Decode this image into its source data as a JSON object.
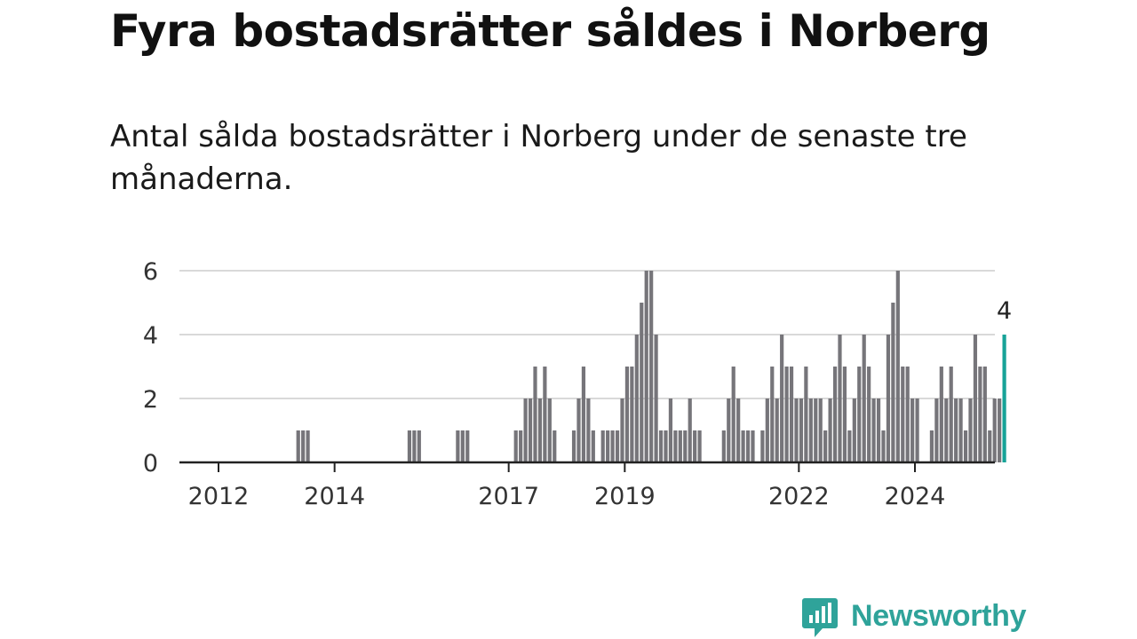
{
  "title": "Fyra bostadsrätter såldes i Norberg",
  "subtitle": "Antal sålda bostadsrätter i Norberg under de senaste tre månaderna.",
  "brand": {
    "name": "Newsworthy",
    "color": "#2fa39a"
  },
  "chart_data": {
    "type": "bar",
    "ylim": [
      0,
      6
    ],
    "yticks": [
      0,
      2,
      4,
      6
    ],
    "x_ticks": [
      {
        "label": "2012",
        "month": 0
      },
      {
        "label": "2014",
        "month": 24
      },
      {
        "label": "2017",
        "month": 60
      },
      {
        "label": "2019",
        "month": 84
      },
      {
        "label": "2022",
        "month": 120
      },
      {
        "label": "2024",
        "month": 144
      }
    ],
    "x_month_range": [
      -8,
      160
    ],
    "grid": true,
    "bar_color": "#76757a",
    "highlight_color": "#17a398",
    "start_period": "2012-01",
    "values": [
      0,
      0,
      0,
      0,
      0,
      0,
      0,
      0,
      0,
      0,
      0,
      0,
      0,
      0,
      0,
      0,
      1,
      1,
      1,
      0,
      0,
      0,
      0,
      0,
      0,
      0,
      0,
      0,
      0,
      0,
      0,
      0,
      0,
      0,
      0,
      0,
      0,
      0,
      0,
      1,
      1,
      1,
      0,
      0,
      0,
      0,
      0,
      0,
      0,
      1,
      1,
      1,
      0,
      0,
      0,
      0,
      0,
      0,
      0,
      0,
      0,
      1,
      1,
      2,
      2,
      3,
      2,
      3,
      2,
      1,
      0,
      0,
      0,
      1,
      2,
      3,
      2,
      1,
      0,
      1,
      1,
      1,
      1,
      2,
      3,
      3,
      4,
      5,
      6,
      6,
      4,
      1,
      1,
      2,
      1,
      1,
      1,
      2,
      1,
      1,
      0,
      0,
      0,
      0,
      1,
      2,
      3,
      2,
      1,
      1,
      1,
      0,
      1,
      2,
      3,
      2,
      4,
      3,
      3,
      2,
      2,
      3,
      2,
      2,
      2,
      1,
      2,
      3,
      4,
      3,
      1,
      2,
      3,
      4,
      3,
      2,
      2,
      1,
      4,
      5,
      6,
      3,
      3,
      2,
      2,
      0,
      0,
      1,
      2,
      3,
      2,
      3,
      2,
      2,
      1,
      2,
      4,
      3,
      3,
      1,
      2,
      2,
      4
    ],
    "annotation": {
      "label": "4",
      "value": 4,
      "index": 162
    }
  }
}
